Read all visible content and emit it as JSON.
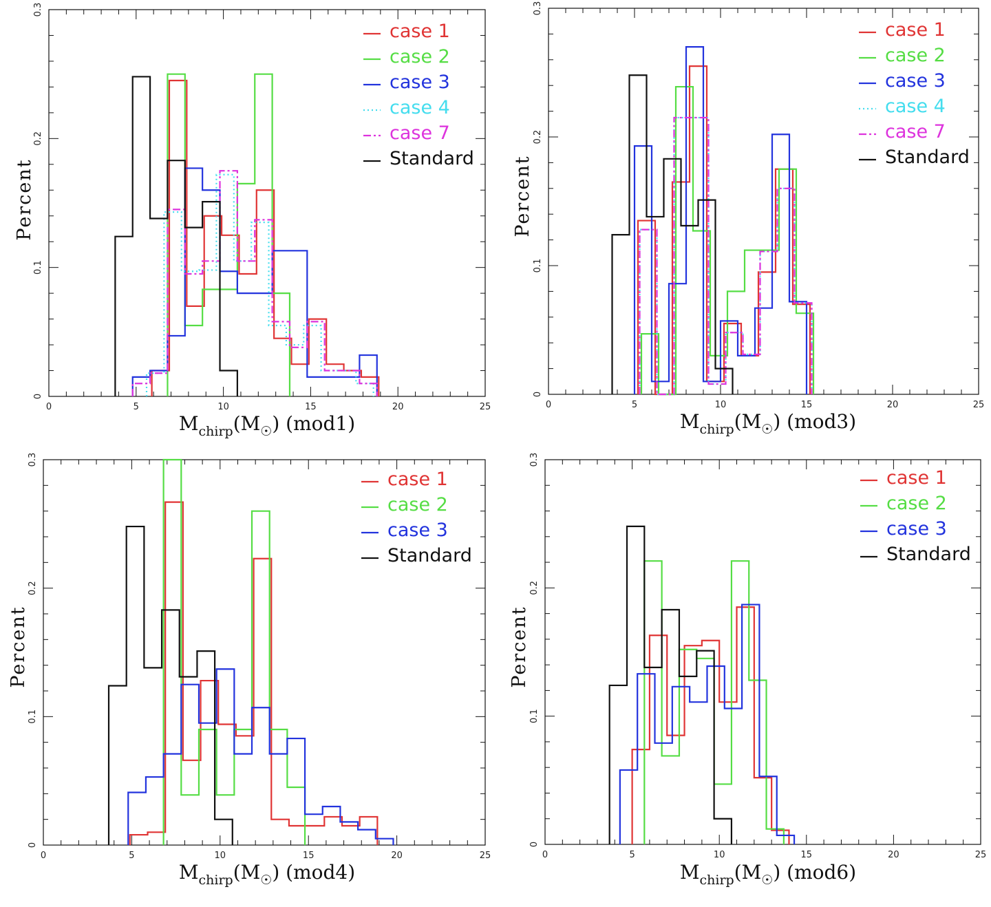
{
  "chart_data": [
    {
      "type": "histogram",
      "panel": "top-left",
      "ylabel": "Percent",
      "xlabel": {
        "main": "M",
        "sub": "chirp",
        "paren": "(M",
        "sun": "☉",
        "close": ")",
        "model": "(mod1)"
      },
      "xlim": [
        0,
        25
      ],
      "ylim": [
        0,
        0.3
      ],
      "xticks": [
        "0",
        "5",
        "10",
        "15",
        "20",
        "25"
      ],
      "yticks": [
        "0",
        "0.1",
        "0.2",
        "0.3"
      ],
      "legend_position": "top-right",
      "series": [
        {
          "name": "case 1",
          "color": "#e03434",
          "style": "solid",
          "edges": [
            5.9,
            6.9,
            7.9,
            8.9,
            9.9,
            10.9,
            11.9,
            12.9,
            13.9,
            14.9,
            15.9,
            16.9,
            17.9,
            18.9
          ],
          "values": [
            0.02,
            0.245,
            0.07,
            0.14,
            0.125,
            0.095,
            0.16,
            0.045,
            0.025,
            0.06,
            0.025,
            0.02,
            0.015
          ]
        },
        {
          "name": "case 2",
          "color": "#55dd44",
          "style": "solid",
          "edges": [
            6.8,
            7.8,
            8.8,
            9.8,
            10.8,
            11.8,
            12.8,
            13.8
          ],
          "values": [
            0.25,
            0.055,
            0.083,
            0.083,
            0.165,
            0.25,
            0.08
          ]
        },
        {
          "name": "case 3",
          "color": "#2233dd",
          "style": "solid",
          "edges": [
            4.8,
            5.8,
            6.8,
            7.8,
            8.8,
            9.8,
            10.8,
            11.8,
            12.8,
            13.8,
            14.8,
            15.8,
            16.8,
            17.8,
            18.8
          ],
          "values": [
            0.015,
            0.02,
            0.047,
            0.177,
            0.16,
            0.097,
            0.08,
            0.08,
            0.113,
            0.113,
            0.015,
            0.015,
            0.015,
            0.032
          ]
        },
        {
          "name": "case 4",
          "color": "#44ddee",
          "style": "dotted",
          "edges": [
            5.6,
            6.6,
            7.6,
            8.6,
            9.6,
            10.6,
            11.6,
            12.6,
            13.6,
            14.6,
            15.6,
            16.6,
            17.6,
            18.6
          ],
          "values": [
            0.018,
            0.143,
            0.097,
            0.098,
            0.172,
            0.105,
            0.135,
            0.055,
            0.04,
            0.055,
            0.02,
            0.02,
            0.01
          ]
        },
        {
          "name": "case 7",
          "color": "#dd33dd",
          "style": "dashdot",
          "edges": [
            4.8,
            5.8,
            6.8,
            7.8,
            8.8,
            9.8,
            10.8,
            11.8,
            12.8,
            13.8,
            14.8,
            15.8,
            16.8,
            17.8,
            18.8
          ],
          "values": [
            0.01,
            0.018,
            0.145,
            0.095,
            0.105,
            0.175,
            0.105,
            0.137,
            0.058,
            0.038,
            0.058,
            0.02,
            0.02,
            0.01
          ]
        },
        {
          "name": "Standard",
          "color": "#111111",
          "style": "solid",
          "edges": [
            3.8,
            4.8,
            5.8,
            6.8,
            7.8,
            8.8,
            9.8,
            10.8
          ],
          "values": [
            0.124,
            0.248,
            0.138,
            0.183,
            0.131,
            0.151,
            0.02
          ]
        }
      ]
    },
    {
      "type": "histogram",
      "panel": "top-right",
      "ylabel": "Percent",
      "xlabel": {
        "main": "M",
        "sub": "chirp",
        "paren": "(M",
        "sun": "☉",
        "close": ")",
        "model": "(mod3)"
      },
      "xlim": [
        0,
        25
      ],
      "ylim": [
        0,
        0.3
      ],
      "xticks": [
        "0",
        "5",
        "10",
        "15",
        "20",
        "25"
      ],
      "yticks": [
        "0",
        "0.1",
        "0.2",
        "0.3"
      ],
      "legend_position": "top-right",
      "series": [
        {
          "name": "case 1",
          "color": "#e03434",
          "style": "solid",
          "edges": [
            5.2,
            6.2,
            7.2,
            8.2,
            9.2,
            10.2,
            11.2,
            12.2,
            13.2,
            14.2,
            15.2
          ],
          "values": [
            0.135,
            0.0,
            0.165,
            0.255,
            0.01,
            0.055,
            0.03,
            0.095,
            0.175,
            0.07
          ]
        },
        {
          "name": "case 2",
          "color": "#55dd44",
          "style": "solid",
          "edges": [
            5.4,
            6.4,
            7.4,
            8.4,
            9.4,
            10.4,
            11.4,
            12.4,
            13.4,
            14.4,
            15.4
          ],
          "values": [
            0.047,
            0.0,
            0.239,
            0.127,
            0.03,
            0.08,
            0.112,
            0.112,
            0.175,
            0.063
          ]
        },
        {
          "name": "case 3",
          "color": "#2233dd",
          "style": "solid",
          "edges": [
            5.0,
            6.0,
            7.0,
            8.0,
            9.0,
            10.0,
            11.0,
            12.0,
            13.0,
            14.0,
            15.0
          ],
          "values": [
            0.193,
            0.01,
            0.086,
            0.27,
            0.01,
            0.057,
            0.03,
            0.067,
            0.202,
            0.072
          ]
        },
        {
          "name": "case 4",
          "color": "#44ddee",
          "style": "dotted",
          "edges": [
            5.3,
            6.3,
            7.3,
            8.3,
            9.3,
            10.3,
            11.3,
            12.3,
            13.3,
            14.3,
            15.3
          ],
          "values": [
            0.128,
            0.0,
            0.215,
            0.215,
            0.008,
            0.048,
            0.031,
            0.111,
            0.16,
            0.071
          ]
        },
        {
          "name": "case 7",
          "color": "#dd33dd",
          "style": "dashdot",
          "edges": [
            5.3,
            6.3,
            7.3,
            8.3,
            9.3,
            10.3,
            11.3,
            12.3,
            13.3,
            14.3,
            15.3
          ],
          "values": [
            0.128,
            0.0,
            0.215,
            0.215,
            0.008,
            0.048,
            0.031,
            0.111,
            0.16,
            0.071
          ]
        },
        {
          "name": "Standard",
          "color": "#111111",
          "style": "solid",
          "edges": [
            3.7,
            4.7,
            5.7,
            6.7,
            7.7,
            8.7,
            9.7,
            10.7
          ],
          "values": [
            0.124,
            0.248,
            0.138,
            0.183,
            0.131,
            0.151,
            0.02
          ]
        }
      ]
    },
    {
      "type": "histogram",
      "panel": "bottom-left",
      "ylabel": "Percent",
      "xlabel": {
        "main": "M",
        "sub": "chirp",
        "paren": "(M",
        "sun": "☉",
        "close": ")",
        "model": "(mod4)"
      },
      "xlim": [
        0,
        25
      ],
      "ylim": [
        0,
        0.3
      ],
      "xticks": [
        "0",
        "5",
        "10",
        "15",
        "20",
        "25"
      ],
      "yticks": [
        "0",
        "0.1",
        "0.2",
        "0.3"
      ],
      "legend_position": "top-right",
      "series": [
        {
          "name": "case 1",
          "color": "#e03434",
          "style": "solid",
          "edges": [
            4.9,
            5.9,
            6.9,
            7.9,
            8.9,
            9.9,
            10.9,
            11.9,
            12.9,
            13.9,
            14.9,
            15.9,
            16.9,
            17.9,
            18.9
          ],
          "values": [
            0.008,
            0.01,
            0.267,
            0.066,
            0.128,
            0.094,
            0.085,
            0.223,
            0.02,
            0.015,
            0.015,
            0.022,
            0.015,
            0.022
          ]
        },
        {
          "name": "case 2",
          "color": "#55dd44",
          "style": "solid",
          "edges": [
            6.8,
            7.8,
            8.8,
            9.8,
            10.8,
            11.8,
            12.8,
            13.8,
            14.8
          ],
          "values": [
            0.3,
            0.039,
            0.09,
            0.039,
            0.09,
            0.26,
            0.09,
            0.045
          ]
        },
        {
          "name": "case 3",
          "color": "#2233dd",
          "style": "solid",
          "edges": [
            4.8,
            5.8,
            6.8,
            7.8,
            8.8,
            9.8,
            10.8,
            11.8,
            12.8,
            13.8,
            14.8,
            15.8,
            16.8,
            17.8,
            18.8,
            19.8
          ],
          "values": [
            0.041,
            0.053,
            0.071,
            0.125,
            0.095,
            0.137,
            0.071,
            0.107,
            0.071,
            0.083,
            0.024,
            0.03,
            0.018,
            0.012,
            0.005
          ]
        },
        {
          "name": "Standard",
          "color": "#111111",
          "style": "solid",
          "edges": [
            3.7,
            4.7,
            5.7,
            6.7,
            7.7,
            8.7,
            9.7,
            10.7
          ],
          "values": [
            0.124,
            0.248,
            0.138,
            0.183,
            0.131,
            0.151,
            0.02
          ]
        }
      ]
    },
    {
      "type": "histogram",
      "panel": "bottom-right",
      "ylabel": "Percent",
      "xlabel": {
        "main": "M",
        "sub": "chirp",
        "paren": "(M",
        "sun": "☉",
        "close": ")",
        "model": "(mod6)"
      },
      "xlim": [
        0,
        25
      ],
      "ylim": [
        0,
        0.3
      ],
      "xticks": [
        "0",
        "5",
        "10",
        "15",
        "20",
        "25"
      ],
      "yticks": [
        "0",
        "0.1",
        "0.2",
        "0.3"
      ],
      "legend_position": "top-right",
      "series": [
        {
          "name": "case 1",
          "color": "#e03434",
          "style": "solid",
          "edges": [
            5.0,
            6.0,
            7.0,
            8.0,
            9.0,
            10.0,
            11.0,
            12.0,
            13.0,
            14.0
          ],
          "values": [
            0.074,
            0.163,
            0.085,
            0.155,
            0.159,
            0.111,
            0.185,
            0.052,
            0.011
          ]
        },
        {
          "name": "case 2",
          "color": "#55dd44",
          "style": "solid",
          "edges": [
            5.7,
            6.7,
            7.7,
            8.7,
            9.7,
            10.7,
            11.7,
            12.7,
            13.7
          ],
          "values": [
            0.221,
            0.069,
            0.152,
            0.145,
            0.047,
            0.221,
            0.128,
            0.012
          ]
        },
        {
          "name": "case 3",
          "color": "#2233dd",
          "style": "solid",
          "edges": [
            4.3,
            5.3,
            6.3,
            7.3,
            8.3,
            9.3,
            10.3,
            11.3,
            12.3,
            13.3,
            14.3
          ],
          "values": [
            0.058,
            0.133,
            0.079,
            0.123,
            0.111,
            0.139,
            0.106,
            0.187,
            0.053,
            0.007
          ]
        },
        {
          "name": "Standard",
          "color": "#111111",
          "style": "solid",
          "edges": [
            3.7,
            4.7,
            5.7,
            6.7,
            7.7,
            8.7,
            9.7,
            10.7
          ],
          "values": [
            0.124,
            0.248,
            0.138,
            0.183,
            0.131,
            0.151,
            0.02
          ]
        }
      ]
    }
  ]
}
